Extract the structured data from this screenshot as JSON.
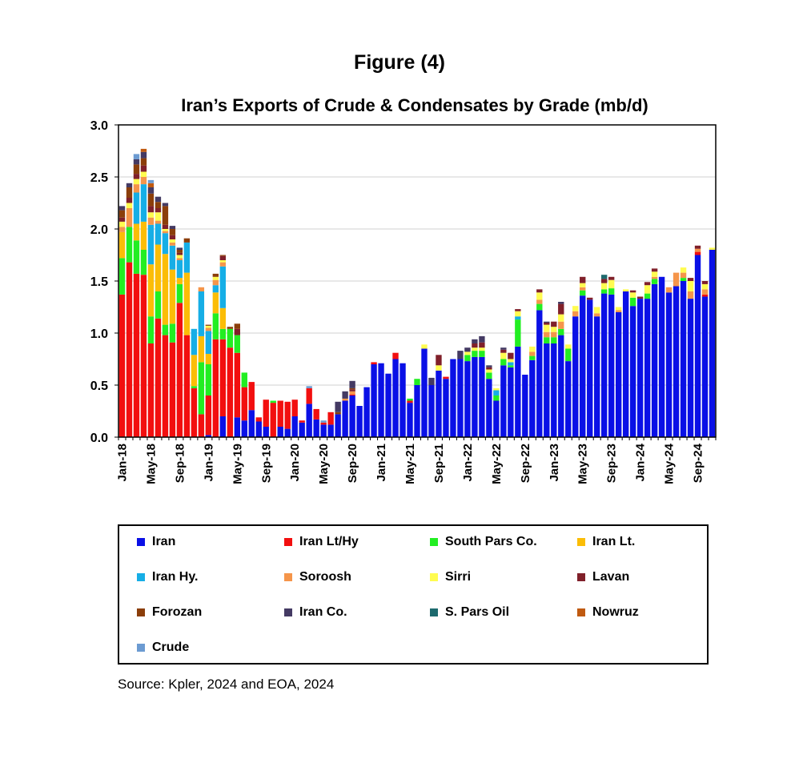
{
  "figure_label": "Figure (4)",
  "source": "Source: Kpler, 2024 and EOA, 2024",
  "chart_data": {
    "type": "bar",
    "stacked": true,
    "title": "Iran’s Exports of Crude & Condensates by Grade (mb/d)",
    "xlabel": "",
    "ylabel": "",
    "ylim": [
      0,
      3.0
    ],
    "yticks": [
      "0.0",
      "0.5",
      "1.0",
      "1.5",
      "2.0",
      "2.5",
      "3.0"
    ],
    "grid": true,
    "legend_position": "bottom",
    "x_tick_labels": [
      {
        "index": 0,
        "label": "Jan-18"
      },
      {
        "index": 4,
        "label": "May-18"
      },
      {
        "index": 8,
        "label": "Sep-18"
      },
      {
        "index": 12,
        "label": "Jan-19"
      },
      {
        "index": 16,
        "label": "May-19"
      },
      {
        "index": 20,
        "label": "Sep-19"
      },
      {
        "index": 24,
        "label": "Jan-20"
      },
      {
        "index": 28,
        "label": "May-20"
      },
      {
        "index": 32,
        "label": "Sep-20"
      },
      {
        "index": 36,
        "label": "Jan-21"
      },
      {
        "index": 40,
        "label": "May-21"
      },
      {
        "index": 44,
        "label": "Sep-21"
      },
      {
        "index": 48,
        "label": "Jan-22"
      },
      {
        "index": 52,
        "label": "May-22"
      },
      {
        "index": 56,
        "label": "Sep-22"
      },
      {
        "index": 60,
        "label": "Jan-23"
      },
      {
        "index": 64,
        "label": "May-23"
      },
      {
        "index": 68,
        "label": "Sep-23"
      },
      {
        "index": 72,
        "label": "Jan-24"
      },
      {
        "index": 76,
        "label": "May-24"
      },
      {
        "index": 80,
        "label": "Sep-24"
      }
    ],
    "months": 83,
    "series": [
      {
        "name": "Iran",
        "color": "#0a10e6",
        "values": [
          0,
          0,
          0,
          0,
          0,
          0,
          0,
          0,
          0,
          0,
          0,
          0,
          0.02,
          0,
          0.2,
          0,
          0.19,
          0.16,
          0.26,
          0.15,
          0.1,
          0,
          0.1,
          0.08,
          0.2,
          0.14,
          0.32,
          0.17,
          0.12,
          0.12,
          0.22,
          0.35,
          0.4,
          0.3,
          0.48,
          0.7,
          0.71,
          0.61,
          0.75,
          0.71,
          0.33,
          0.5,
          0.85,
          0.5,
          0.64,
          0.56,
          0.75,
          0.75,
          0.73,
          0.77,
          0.77,
          0.56,
          0.35,
          0.69,
          0.67,
          0.87,
          0.6,
          0.74,
          1.22,
          0.9,
          0.9,
          0.98,
          0.73,
          1.16,
          1.36,
          1.32,
          1.16,
          1.38,
          1.37,
          1.2,
          1.4,
          1.26,
          1.33,
          1.33,
          1.47,
          1.54,
          1.39,
          1.45,
          1.5,
          1.33,
          1.75,
          1.35,
          1.8
        ]
      },
      {
        "name": "Iran Lt/Hy",
        "color": "#f20f0f",
        "values": [
          1.37,
          1.68,
          1.57,
          1.56,
          0.9,
          1.14,
          0.98,
          0.91,
          1.29,
          0.98,
          0.47,
          0.22,
          0.38,
          0.94,
          0.74,
          0.86,
          0.62,
          0.32,
          0.27,
          0.04,
          0.26,
          0.33,
          0.25,
          0.26,
          0.16,
          0.02,
          0.15,
          0.1,
          0.02,
          0.12,
          0,
          0,
          0.01,
          0,
          0,
          0.02,
          0,
          0,
          0.06,
          0,
          0.02,
          0,
          0,
          0,
          0,
          0.02,
          0,
          0,
          0,
          0,
          0,
          0,
          0,
          0,
          0,
          0,
          0,
          0,
          0,
          0,
          0,
          0,
          0,
          0,
          0,
          0,
          0,
          0,
          0,
          0,
          0,
          0,
          0,
          0,
          0,
          0,
          0,
          0,
          0,
          0,
          0.03,
          0.02,
          0
        ]
      },
      {
        "name": "South Pars Co.",
        "color": "#22ee22",
        "values": [
          0.35,
          0.34,
          0.32,
          0.24,
          0.26,
          0.26,
          0.1,
          0.18,
          0.18,
          0,
          0.02,
          0.5,
          0.3,
          0.25,
          0.1,
          0.18,
          0.17,
          0.14,
          0,
          0,
          0,
          0.02,
          0,
          0,
          0,
          0,
          0,
          0,
          0,
          0,
          0,
          0,
          0,
          0,
          0,
          0,
          0,
          0,
          0,
          0,
          0.02,
          0.06,
          0,
          0,
          0,
          0,
          0,
          0,
          0.06,
          0.06,
          0.06,
          0.06,
          0.05,
          0.06,
          0.02,
          0.26,
          0,
          0.04,
          0.06,
          0.06,
          0.06,
          0.06,
          0.12,
          0,
          0.05,
          0,
          0,
          0.04,
          0.06,
          0,
          0,
          0.08,
          0,
          0.05,
          0.05,
          0,
          0,
          0,
          0.03,
          0,
          0,
          0,
          0
        ]
      },
      {
        "name": "Iran Lt.",
        "color": "#fbbd07",
        "values": [
          0.25,
          0,
          0.16,
          0.27,
          0.5,
          0.45,
          0.68,
          0.52,
          0.06,
          0.6,
          0.3,
          0.25,
          0.1,
          0.2,
          0.2,
          0,
          0,
          0,
          0,
          0,
          0,
          0,
          0,
          0,
          0,
          0,
          0,
          0,
          0,
          0,
          0,
          0,
          0,
          0,
          0,
          0,
          0,
          0,
          0,
          0,
          0,
          0,
          0,
          0,
          0,
          0,
          0,
          0,
          0,
          0,
          0,
          0,
          0,
          0,
          0,
          0,
          0,
          0,
          0,
          0,
          0,
          0,
          0,
          0,
          0,
          0,
          0,
          0,
          0,
          0,
          0,
          0,
          0,
          0,
          0,
          0,
          0,
          0,
          0,
          0,
          0,
          0,
          0
        ]
      },
      {
        "name": "Iran Hy.",
        "color": "#16aee6",
        "values": [
          0,
          0,
          0.3,
          0.36,
          0.38,
          0.2,
          0.2,
          0.23,
          0.17,
          0.29,
          0.25,
          0.43,
          0.22,
          0.07,
          0.4,
          0,
          0,
          0,
          0,
          0,
          0,
          0,
          0,
          0,
          0,
          0,
          0,
          0,
          0,
          0,
          0,
          0,
          0,
          0,
          0,
          0,
          0,
          0,
          0,
          0,
          0,
          0,
          0,
          0,
          0,
          0,
          0,
          0,
          0,
          0,
          0,
          0,
          0.05,
          0,
          0.03,
          0.03,
          0,
          0,
          0,
          0,
          0,
          0,
          0,
          0,
          0,
          0,
          0,
          0,
          0,
          0,
          0,
          0,
          0,
          0,
          0,
          0,
          0,
          0,
          0,
          0,
          0,
          0,
          0
        ]
      },
      {
        "name": "Soroosh",
        "color": "#f5954a",
        "values": [
          0.05,
          0.18,
          0.08,
          0.07,
          0.07,
          0.03,
          0.02,
          0.03,
          0.02,
          0,
          0,
          0.04,
          0.03,
          0.05,
          0.04,
          0,
          0,
          0,
          0,
          0,
          0,
          0,
          0,
          0,
          0,
          0,
          0,
          0,
          0,
          0,
          0,
          0.02,
          0.03,
          0,
          0,
          0,
          0,
          0,
          0,
          0,
          0,
          0,
          0,
          0,
          0,
          0,
          0,
          0,
          0,
          0,
          0,
          0,
          0,
          0,
          0,
          0,
          0,
          0.04,
          0.04,
          0.05,
          0.05,
          0.07,
          0,
          0.05,
          0.03,
          0,
          0.03,
          0,
          0,
          0.02,
          0,
          0,
          0,
          0,
          0.02,
          0,
          0.05,
          0.13,
          0.05,
          0.07,
          0.03,
          0.05,
          0
        ]
      },
      {
        "name": "Sirri",
        "color": "#fffc50",
        "values": [
          0.05,
          0.05,
          0.05,
          0.05,
          0.05,
          0.08,
          0.02,
          0.03,
          0.03,
          0,
          0,
          0,
          0.02,
          0.03,
          0.02,
          0,
          0,
          0,
          0,
          0,
          0,
          0,
          0,
          0,
          0,
          0,
          0,
          0,
          0,
          0,
          0,
          0,
          0,
          0,
          0,
          0,
          0,
          0,
          0,
          0,
          0,
          0,
          0.04,
          0,
          0.05,
          0,
          0,
          0,
          0.03,
          0.03,
          0.03,
          0.03,
          0.02,
          0.06,
          0.03,
          0.05,
          0,
          0.05,
          0.07,
          0.07,
          0.05,
          0.07,
          0.04,
          0.05,
          0.04,
          0,
          0.06,
          0.06,
          0.08,
          0.03,
          0.02,
          0.05,
          0,
          0.08,
          0.05,
          0,
          0,
          0,
          0.05,
          0.1,
          0,
          0.05,
          0.02
        ]
      },
      {
        "name": "Lavan",
        "color": "#80202a",
        "values": [
          0.04,
          0.05,
          0.05,
          0.06,
          0.06,
          0.04,
          0.04,
          0.04,
          0.02,
          0,
          0,
          0,
          0,
          0,
          0.04,
          0,
          0.06,
          0,
          0,
          0,
          0,
          0,
          0,
          0,
          0,
          0,
          0,
          0,
          0,
          0,
          0,
          0,
          0.02,
          0,
          0,
          0,
          0,
          0,
          0,
          0,
          0,
          0,
          0,
          0,
          0.1,
          0,
          0,
          0,
          0,
          0.04,
          0.05,
          0.02,
          0,
          0.03,
          0.06,
          0.02,
          0,
          0,
          0.03,
          0.02,
          0.05,
          0.1,
          0,
          0,
          0.06,
          0.02,
          0,
          0.04,
          0.03,
          0,
          0,
          0.02,
          0.02,
          0.03,
          0.03,
          0,
          0,
          0,
          0,
          0.03,
          0.03,
          0.03,
          0
        ]
      },
      {
        "name": "Forozan",
        "color": "#8b3e0a",
        "values": [
          0.07,
          0.1,
          0.09,
          0.07,
          0.12,
          0.06,
          0.18,
          0.06,
          0.03,
          0.04,
          0,
          0,
          0.01,
          0.03,
          0.01,
          0.02,
          0.05,
          0,
          0,
          0,
          0,
          0,
          0,
          0,
          0,
          0,
          0,
          0,
          0,
          0,
          0.02,
          0,
          0.01,
          0,
          0,
          0,
          0,
          0,
          0,
          0,
          0,
          0,
          0,
          0,
          0,
          0,
          0,
          0,
          0,
          0,
          0,
          0,
          0,
          0,
          0,
          0,
          0,
          0,
          0,
          0,
          0,
          0,
          0,
          0,
          0,
          0,
          0,
          0,
          0,
          0,
          0,
          0,
          0,
          0,
          0,
          0,
          0,
          0,
          0,
          0,
          0,
          0,
          0
        ]
      },
      {
        "name": "Iran Co.",
        "color": "#443a63",
        "values": [
          0.04,
          0.04,
          0.05,
          0.06,
          0.06,
          0.05,
          0.03,
          0.03,
          0.02,
          0,
          0,
          0,
          0,
          0,
          0,
          0,
          0,
          0,
          0,
          0,
          0,
          0,
          0,
          0,
          0,
          0,
          0,
          0,
          0,
          0,
          0.1,
          0.07,
          0.07,
          0,
          0,
          0,
          0,
          0,
          0,
          0,
          0,
          0,
          0,
          0.07,
          0,
          0,
          0,
          0.08,
          0.04,
          0.04,
          0.06,
          0.02,
          0,
          0.02,
          0,
          0,
          0,
          0,
          0,
          0.01,
          0,
          0.02,
          0,
          0,
          0,
          0,
          0,
          0,
          0,
          0,
          0,
          0,
          0,
          0,
          0,
          0,
          0,
          0,
          0,
          0,
          0,
          0,
          0
        ]
      },
      {
        "name": "S. Pars Oil",
        "color": "#1d6a6e",
        "values": [
          0,
          0,
          0,
          0,
          0,
          0,
          0,
          0,
          0,
          0,
          0,
          0,
          0,
          0,
          0,
          0,
          0,
          0,
          0,
          0,
          0,
          0,
          0,
          0,
          0,
          0,
          0,
          0,
          0,
          0,
          0,
          0,
          0,
          0,
          0,
          0,
          0,
          0,
          0,
          0,
          0,
          0,
          0,
          0,
          0,
          0,
          0,
          0,
          0,
          0,
          0,
          0,
          0,
          0,
          0,
          0,
          0,
          0,
          0,
          0,
          0,
          0,
          0,
          0,
          0,
          0,
          0,
          0.04,
          0,
          0,
          0,
          0,
          0,
          0,
          0,
          0,
          0,
          0,
          0,
          0,
          0,
          0,
          0
        ]
      },
      {
        "name": "Nowruz",
        "color": "#c05a10",
        "values": [
          0,
          0,
          0,
          0.03,
          0.04,
          0,
          0,
          0,
          0,
          0,
          0,
          0,
          0,
          0,
          0,
          0,
          0,
          0,
          0,
          0,
          0,
          0,
          0,
          0,
          0,
          0,
          0,
          0,
          0,
          0,
          0,
          0,
          0,
          0,
          0,
          0,
          0,
          0,
          0,
          0,
          0,
          0,
          0,
          0,
          0,
          0,
          0,
          0,
          0,
          0,
          0,
          0,
          0,
          0,
          0,
          0,
          0,
          0,
          0,
          0,
          0,
          0,
          0,
          0,
          0,
          0,
          0,
          0,
          0,
          0,
          0,
          0,
          0,
          0,
          0,
          0,
          0,
          0,
          0,
          0,
          0,
          0,
          0
        ]
      },
      {
        "name": "Crude",
        "color": "#6c9bd2",
        "values": [
          0,
          0,
          0.05,
          0,
          0.03,
          0,
          0,
          0,
          0,
          0,
          0,
          0,
          0,
          0,
          0,
          0,
          0,
          0,
          0,
          0,
          0,
          0,
          0,
          0,
          0,
          0,
          0.02,
          0,
          0.02,
          0,
          0,
          0,
          0,
          0,
          0,
          0,
          0,
          0,
          0,
          0,
          0,
          0,
          0,
          0,
          0,
          0,
          0,
          0,
          0,
          0,
          0,
          0,
          0,
          0,
          0,
          0,
          0,
          0,
          0,
          0,
          0,
          0,
          0,
          0,
          0,
          0,
          0,
          0,
          0,
          0,
          0,
          0,
          0,
          0,
          0,
          0,
          0,
          0,
          0,
          0,
          0,
          0,
          0
        ]
      }
    ]
  }
}
